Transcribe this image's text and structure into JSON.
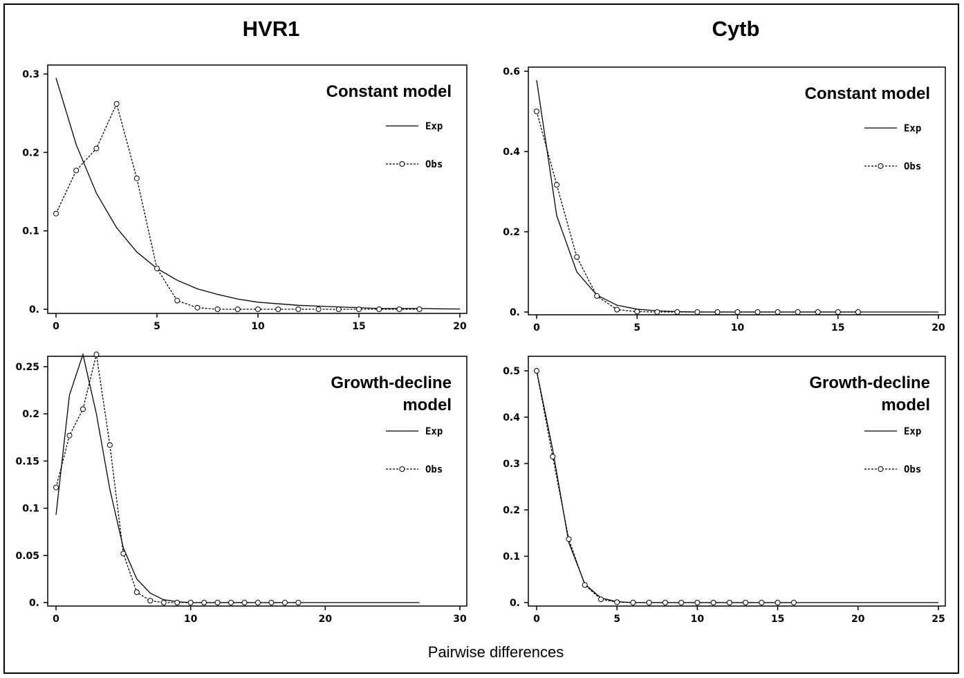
{
  "column_titles": {
    "left": "HVR1",
    "right": "Cytb"
  },
  "x_axis_label": "Pairwise differences",
  "legend": {
    "exp": "Exp",
    "obs": "Obs"
  },
  "colors": {
    "line": "#000000",
    "background": "#ffffff"
  },
  "chart_data": [
    {
      "type": "line",
      "id": "hvr1-constant",
      "title": [
        "Constant model"
      ],
      "xlim": [
        0,
        20
      ],
      "ylim": [
        0,
        0.3
      ],
      "xticks": [
        0,
        5,
        10,
        15,
        20
      ],
      "xtick_labels": [
        "0",
        "5",
        "10",
        "15",
        "20"
      ],
      "yticks": [
        0,
        0.1,
        0.2,
        0.3
      ],
      "ytick_labels": [
        "0.",
        "0.1",
        "0.2",
        "0.3"
      ],
      "series": [
        {
          "name": "Exp",
          "style": "solid",
          "x": [
            0,
            1,
            2,
            3,
            4,
            5,
            6,
            7,
            8,
            9,
            10,
            11,
            12,
            13,
            14,
            15,
            16,
            17,
            18,
            19,
            20
          ],
          "y": [
            0.295,
            0.21,
            0.148,
            0.104,
            0.073,
            0.052,
            0.037,
            0.026,
            0.019,
            0.013,
            0.009,
            0.007,
            0.005,
            0.004,
            0.003,
            0.002,
            0.001,
            0.001,
            0.001,
            0.0005,
            0.0003
          ]
        },
        {
          "name": "Obs",
          "style": "dashed",
          "x": [
            0,
            1,
            2,
            3,
            4,
            5,
            6,
            7,
            8,
            9,
            10,
            11,
            12,
            13,
            14,
            15,
            16,
            17,
            18
          ],
          "y": [
            0.122,
            0.177,
            0.205,
            0.262,
            0.167,
            0.052,
            0.011,
            0.002,
            0.0,
            0.0,
            0.0,
            0.0,
            0.0,
            0.0,
            0.0,
            0.0,
            0.0,
            0.0,
            0.0
          ]
        }
      ]
    },
    {
      "type": "line",
      "id": "cytb-constant",
      "title": [
        "Constant model"
      ],
      "xlim": [
        0,
        20
      ],
      "ylim": [
        0,
        0.6
      ],
      "xticks": [
        0,
        5,
        10,
        15,
        20
      ],
      "xtick_labels": [
        "0",
        "5",
        "10",
        "15",
        "20"
      ],
      "yticks": [
        0,
        0.2,
        0.4,
        0.6
      ],
      "ytick_labels": [
        "0.",
        "0.2",
        "0.4",
        "0.6"
      ],
      "series": [
        {
          "name": "Exp",
          "style": "solid",
          "x": [
            0,
            1,
            2,
            3,
            4,
            5,
            6,
            7,
            8,
            10,
            12,
            15,
            20
          ],
          "y": [
            0.578,
            0.24,
            0.1,
            0.042,
            0.017,
            0.007,
            0.003,
            0.001,
            0.0,
            0.0,
            0.0,
            0.0,
            0.0
          ]
        },
        {
          "name": "Obs",
          "style": "dashed",
          "x": [
            0,
            1,
            2,
            3,
            4,
            5,
            6,
            7,
            8,
            9,
            10,
            11,
            12,
            13,
            14,
            15,
            16
          ],
          "y": [
            0.5,
            0.317,
            0.137,
            0.04,
            0.006,
            0.001,
            0.0,
            0.0,
            0.0,
            0.0,
            0.0,
            0.0,
            0.0,
            0.0,
            0.0,
            0.0,
            0.0
          ]
        }
      ]
    },
    {
      "type": "line",
      "id": "hvr1-growth-decline",
      "title": [
        "Growth-decline",
        "model"
      ],
      "xlim": [
        0,
        30
      ],
      "ylim": [
        0,
        0.275
      ],
      "xticks": [
        0,
        10,
        20,
        30
      ],
      "xtick_labels": [
        "0",
        "10",
        "20",
        "30"
      ],
      "yticks": [
        0,
        0.05,
        0.1,
        0.15,
        0.2,
        0.25
      ],
      "ytick_labels": [
        "0.",
        "0.05",
        "0.1",
        "0.15",
        "0.2",
        "0.25"
      ],
      "series": [
        {
          "name": "Exp",
          "style": "solid",
          "x": [
            0,
            1,
            2,
            3,
            4,
            5,
            6,
            7,
            8,
            9,
            10,
            12,
            15,
            20,
            27
          ],
          "y": [
            0.093,
            0.22,
            0.263,
            0.2,
            0.12,
            0.058,
            0.025,
            0.01,
            0.003,
            0.001,
            0.0,
            0.0,
            0.0,
            0.0,
            0.0
          ]
        },
        {
          "name": "Obs",
          "style": "dashed",
          "x": [
            0,
            1,
            2,
            3,
            4,
            5,
            6,
            7,
            8,
            9,
            10,
            11,
            12,
            13,
            14,
            15,
            16,
            17,
            18
          ],
          "y": [
            0.122,
            0.177,
            0.205,
            0.263,
            0.167,
            0.052,
            0.011,
            0.002,
            0.0,
            0.0,
            0.0,
            0.0,
            0.0,
            0.0,
            0.0,
            0.0,
            0.0,
            0.0,
            0.0
          ]
        }
      ]
    },
    {
      "type": "line",
      "id": "cytb-growth-decline",
      "title": [
        "Growth-decline",
        "model"
      ],
      "xlim": [
        0,
        25
      ],
      "ylim": [
        0,
        0.5
      ],
      "xticks": [
        0,
        5,
        10,
        15,
        20,
        25
      ],
      "xtick_labels": [
        "0",
        "5",
        "10",
        "15",
        "20",
        "25"
      ],
      "yticks": [
        0,
        0.1,
        0.2,
        0.3,
        0.4,
        0.5
      ],
      "ytick_labels": [
        "0.",
        "0.1",
        "0.2",
        "0.3",
        "0.4",
        "0.5"
      ],
      "series": [
        {
          "name": "Exp",
          "style": "solid",
          "x": [
            0,
            1,
            2,
            3,
            4,
            5,
            6,
            7,
            8,
            10,
            15,
            20,
            25
          ],
          "y": [
            0.5,
            0.33,
            0.13,
            0.04,
            0.01,
            0.002,
            0.0,
            0.0,
            0.0,
            0.0,
            0.0,
            0.0,
            0.0
          ]
        },
        {
          "name": "Obs",
          "style": "dashed",
          "x": [
            0,
            1,
            2,
            3,
            4,
            5,
            6,
            7,
            8,
            9,
            10,
            11,
            12,
            13,
            14,
            15,
            16
          ],
          "y": [
            0.5,
            0.315,
            0.137,
            0.038,
            0.007,
            0.001,
            0.0,
            0.0,
            0.0,
            0.0,
            0.0,
            0.0,
            0.0,
            0.0,
            0.0,
            0.0,
            0.0
          ]
        }
      ]
    }
  ]
}
